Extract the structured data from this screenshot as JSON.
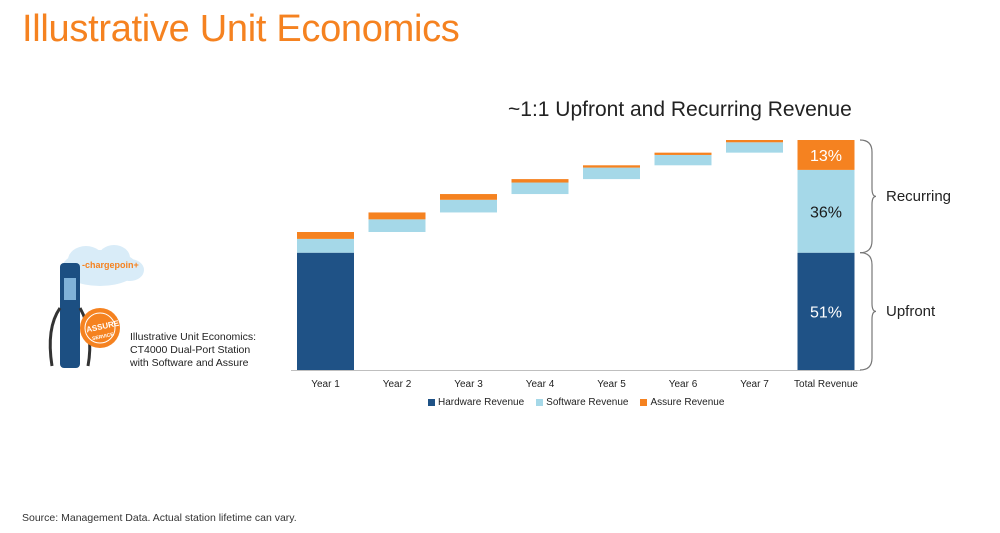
{
  "page_title": "Illustrative Unit Economics",
  "caption": {
    "line1": "Illustrative Unit Economics:",
    "line2": "CT4000 Dual-Port Station",
    "line3": "with Software and Assure"
  },
  "logo": {
    "brand": "-chargepoin+",
    "badge": "ASSURE",
    "badge_sub": "SERVICE"
  },
  "source_note": "Source: Management Data. Actual station lifetime can vary.",
  "brackets": {
    "recurring": "Recurring",
    "upfront": "Upfront"
  },
  "chart_data": {
    "type": "bar",
    "title": "~1:1 Upfront and Recurring Revenue",
    "categories": [
      "Year 1",
      "Year 2",
      "Year 3",
      "Year 4",
      "Year 5",
      "Year 6",
      "Year 7",
      "Total Revenue"
    ],
    "series": [
      {
        "name": "Hardware Revenue",
        "color": "#1f5286",
        "values": [
          51,
          0,
          0,
          0,
          0,
          0,
          0,
          51
        ]
      },
      {
        "name": "Software Revenue",
        "color": "#a5d8e8",
        "values": [
          6,
          5.5,
          5.5,
          5,
          5,
          4.5,
          4.5,
          36
        ]
      },
      {
        "name": "Assure Revenue",
        "color": "#f58220",
        "values": [
          3,
          3,
          2.5,
          1.5,
          1,
          1,
          1,
          13
        ]
      }
    ],
    "waterfall": true,
    "ylim": [
      0,
      100
    ],
    "data_labels": {
      "Total Revenue": [
        "51%",
        "36%",
        "13%"
      ]
    },
    "legend_position": "bottom"
  }
}
